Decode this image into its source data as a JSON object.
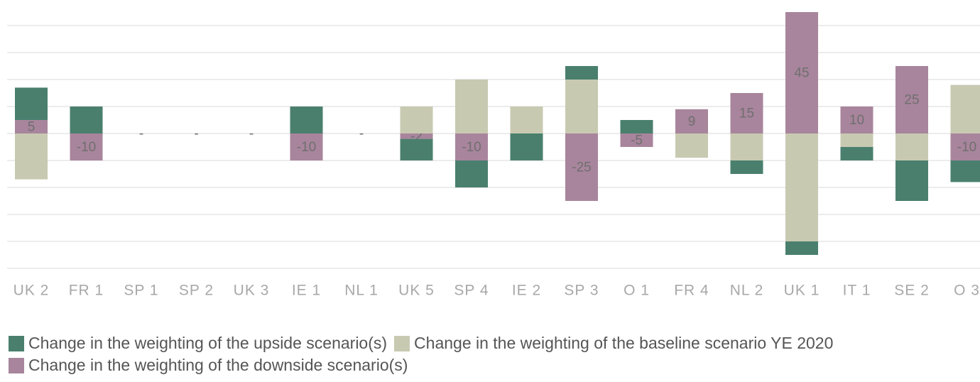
{
  "chart_data": {
    "type": "stacked-bar",
    "categories": [
      "UK 2",
      "FR 1",
      "SP 1",
      "SP 2",
      "UK 3",
      "IE 1",
      "NL 1",
      "UK 5",
      "SP 4",
      "IE 2",
      "SP 3",
      "O 1",
      "FR 4",
      "NL 2",
      "UK 1",
      "IT 1",
      "SE 2",
      "O 3"
    ],
    "series": [
      {
        "name": "Change in the weighting of the upside scenario(s)",
        "color": "#4a7f6e",
        "values": [
          12,
          10,
          0,
          0,
          0,
          10,
          0,
          -8,
          -10,
          -10,
          5,
          5,
          0,
          -5,
          -5,
          -5,
          -15,
          -8
        ]
      },
      {
        "name": "Change in the weighting of the baseline scenario YE 2020",
        "color": "#c8c9b1",
        "values": [
          -17,
          0,
          0,
          0,
          0,
          0,
          0,
          10,
          20,
          10,
          20,
          0,
          -9,
          -10,
          -40,
          -5,
          -10,
          18
        ]
      },
      {
        "name": "Change in the weighting of the downside scenario(s)",
        "color": "#a8859c",
        "values": [
          5,
          -10,
          0,
          0,
          0,
          -10,
          0,
          -2,
          -10,
          0,
          -25,
          -5,
          9,
          15,
          45,
          10,
          25,
          -10
        ],
        "value_labels": [
          "5",
          "-10",
          "-",
          "-",
          "-",
          "-10",
          "-",
          "-2",
          "-10",
          "-",
          "-25",
          "-5",
          "9",
          "15",
          "45",
          "10",
          "25",
          "-10"
        ]
      }
    ],
    "ylim": [
      -50,
      50
    ],
    "yticks": [
      -50,
      -40,
      -30,
      -20,
      -10,
      0,
      10,
      20,
      30,
      40
    ],
    "grid": true
  }
}
